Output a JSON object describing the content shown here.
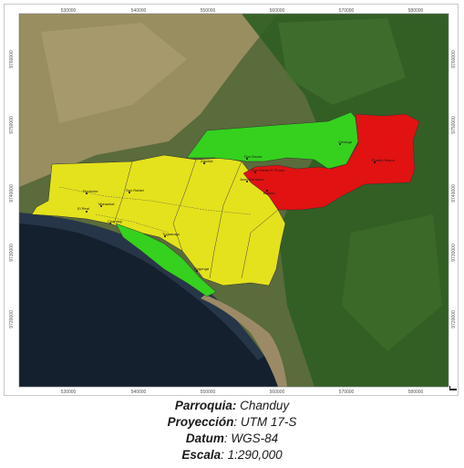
{
  "map": {
    "x_ticks": [
      "530000",
      "540000",
      "550000",
      "560000",
      "570000",
      "580000"
    ],
    "y_ticks": [
      "9760000",
      "9750000",
      "9740000",
      "9730000",
      "9720000"
    ],
    "places": [
      {
        "id": "dos-bocas",
        "label": "Dos Bocas"
      },
      {
        "id": "cienega",
        "label": "Ciénega"
      },
      {
        "id": "pueblo-nuevo",
        "label": "Pueblo Nuevo"
      },
      {
        "id": "san-rafael-el-prado",
        "label": "San Rafael El Prado"
      },
      {
        "id": "juan-montalvo",
        "label": "Juan Montalvo"
      },
      {
        "id": "bajada",
        "label": "Bajada"
      },
      {
        "id": "zapotal",
        "label": "Zapotal"
      },
      {
        "id": "san-rafael",
        "label": "San Rafael"
      },
      {
        "id": "manantial",
        "label": "Manantial"
      },
      {
        "id": "chanduy",
        "label": "Chanduy"
      },
      {
        "id": "engunga",
        "label": "Engunga"
      },
      {
        "id": "tugaduaja",
        "label": "Tugaduaja"
      },
      {
        "id": "el-real",
        "label": "El Real"
      },
      {
        "id": "pechiche",
        "label": "Pechiche"
      }
    ],
    "zone_colors": {
      "green": "#35d11e",
      "yellow": "#e4e21c",
      "red": "#e01212"
    }
  },
  "caption": {
    "parroquia_label": "Parroquia:",
    "parroquia_value": "Chanduy",
    "proyeccion_label": "Proyección",
    "proyeccion_value": "UTM 17-S",
    "datum_label": "Datum",
    "datum_value": "WGS-84",
    "escala_label": "Escala",
    "escala_value": "1:290,000"
  }
}
